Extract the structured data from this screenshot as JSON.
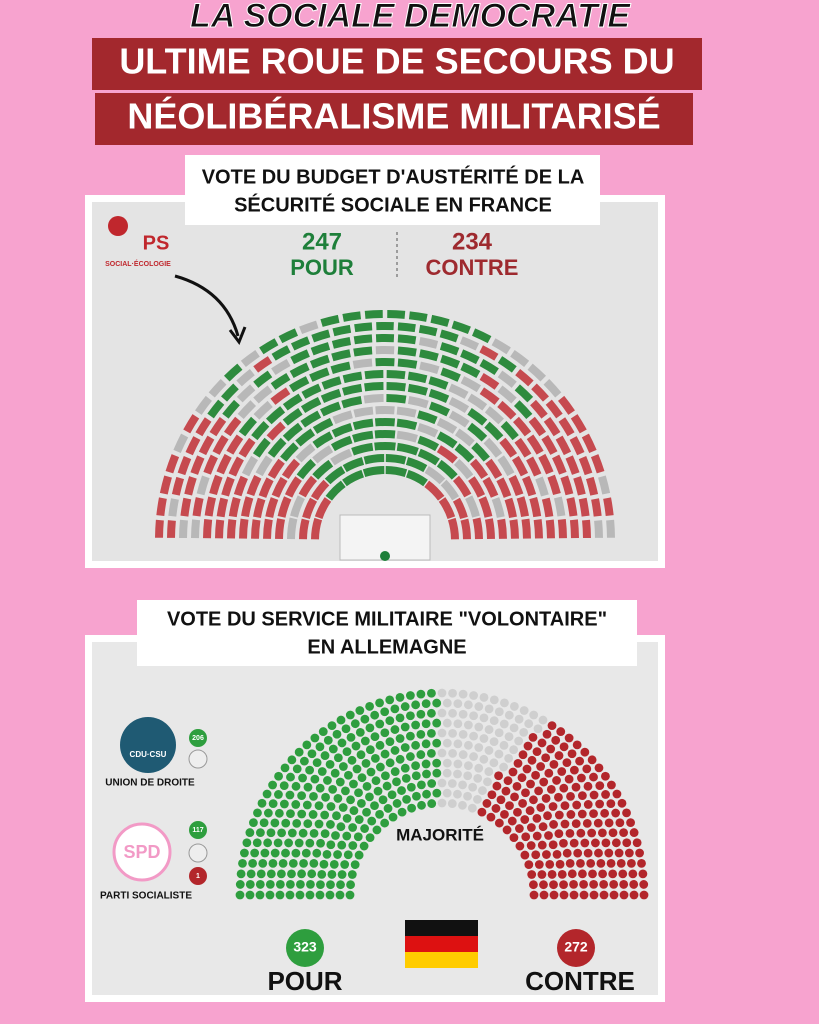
{
  "header": {
    "title": "LA SOCIALE DEMOCRATIE",
    "banner": [
      "ULTIME ROUE DE SECOURS DU",
      "NÉOLIBÉRALISME MILITARISÉ"
    ]
  },
  "france": {
    "title": [
      "VOTE DU BUDGET D'AUSTÉRITÉ DE LA",
      "SÉCURITÉ SOCIALE EN FRANCE"
    ],
    "party": "PS",
    "party_sub": "SOCIAL·ÉCOLOGIE",
    "pour": {
      "count": "247",
      "label": "POUR"
    },
    "contre": {
      "count": "234",
      "label": "CONTRE"
    }
  },
  "germany": {
    "title": [
      "VOTE DU SERVICE MILITAIRE \"VOLONTAIRE\"",
      "EN ALLEMAGNE"
    ],
    "groups": [
      {
        "logo": "CDU·CSU",
        "name": "UNION DE DROITE",
        "badges": [
          "206"
        ]
      },
      {
        "logo": "SPD",
        "name": "PARTI SOCIALISTE",
        "badges": [
          "117",
          "1"
        ]
      }
    ],
    "majority": "MAJORITÉ",
    "pour": {
      "count": "323",
      "label": "POUR"
    },
    "contre": {
      "count": "272",
      "label": "CONTRE"
    }
  }
}
